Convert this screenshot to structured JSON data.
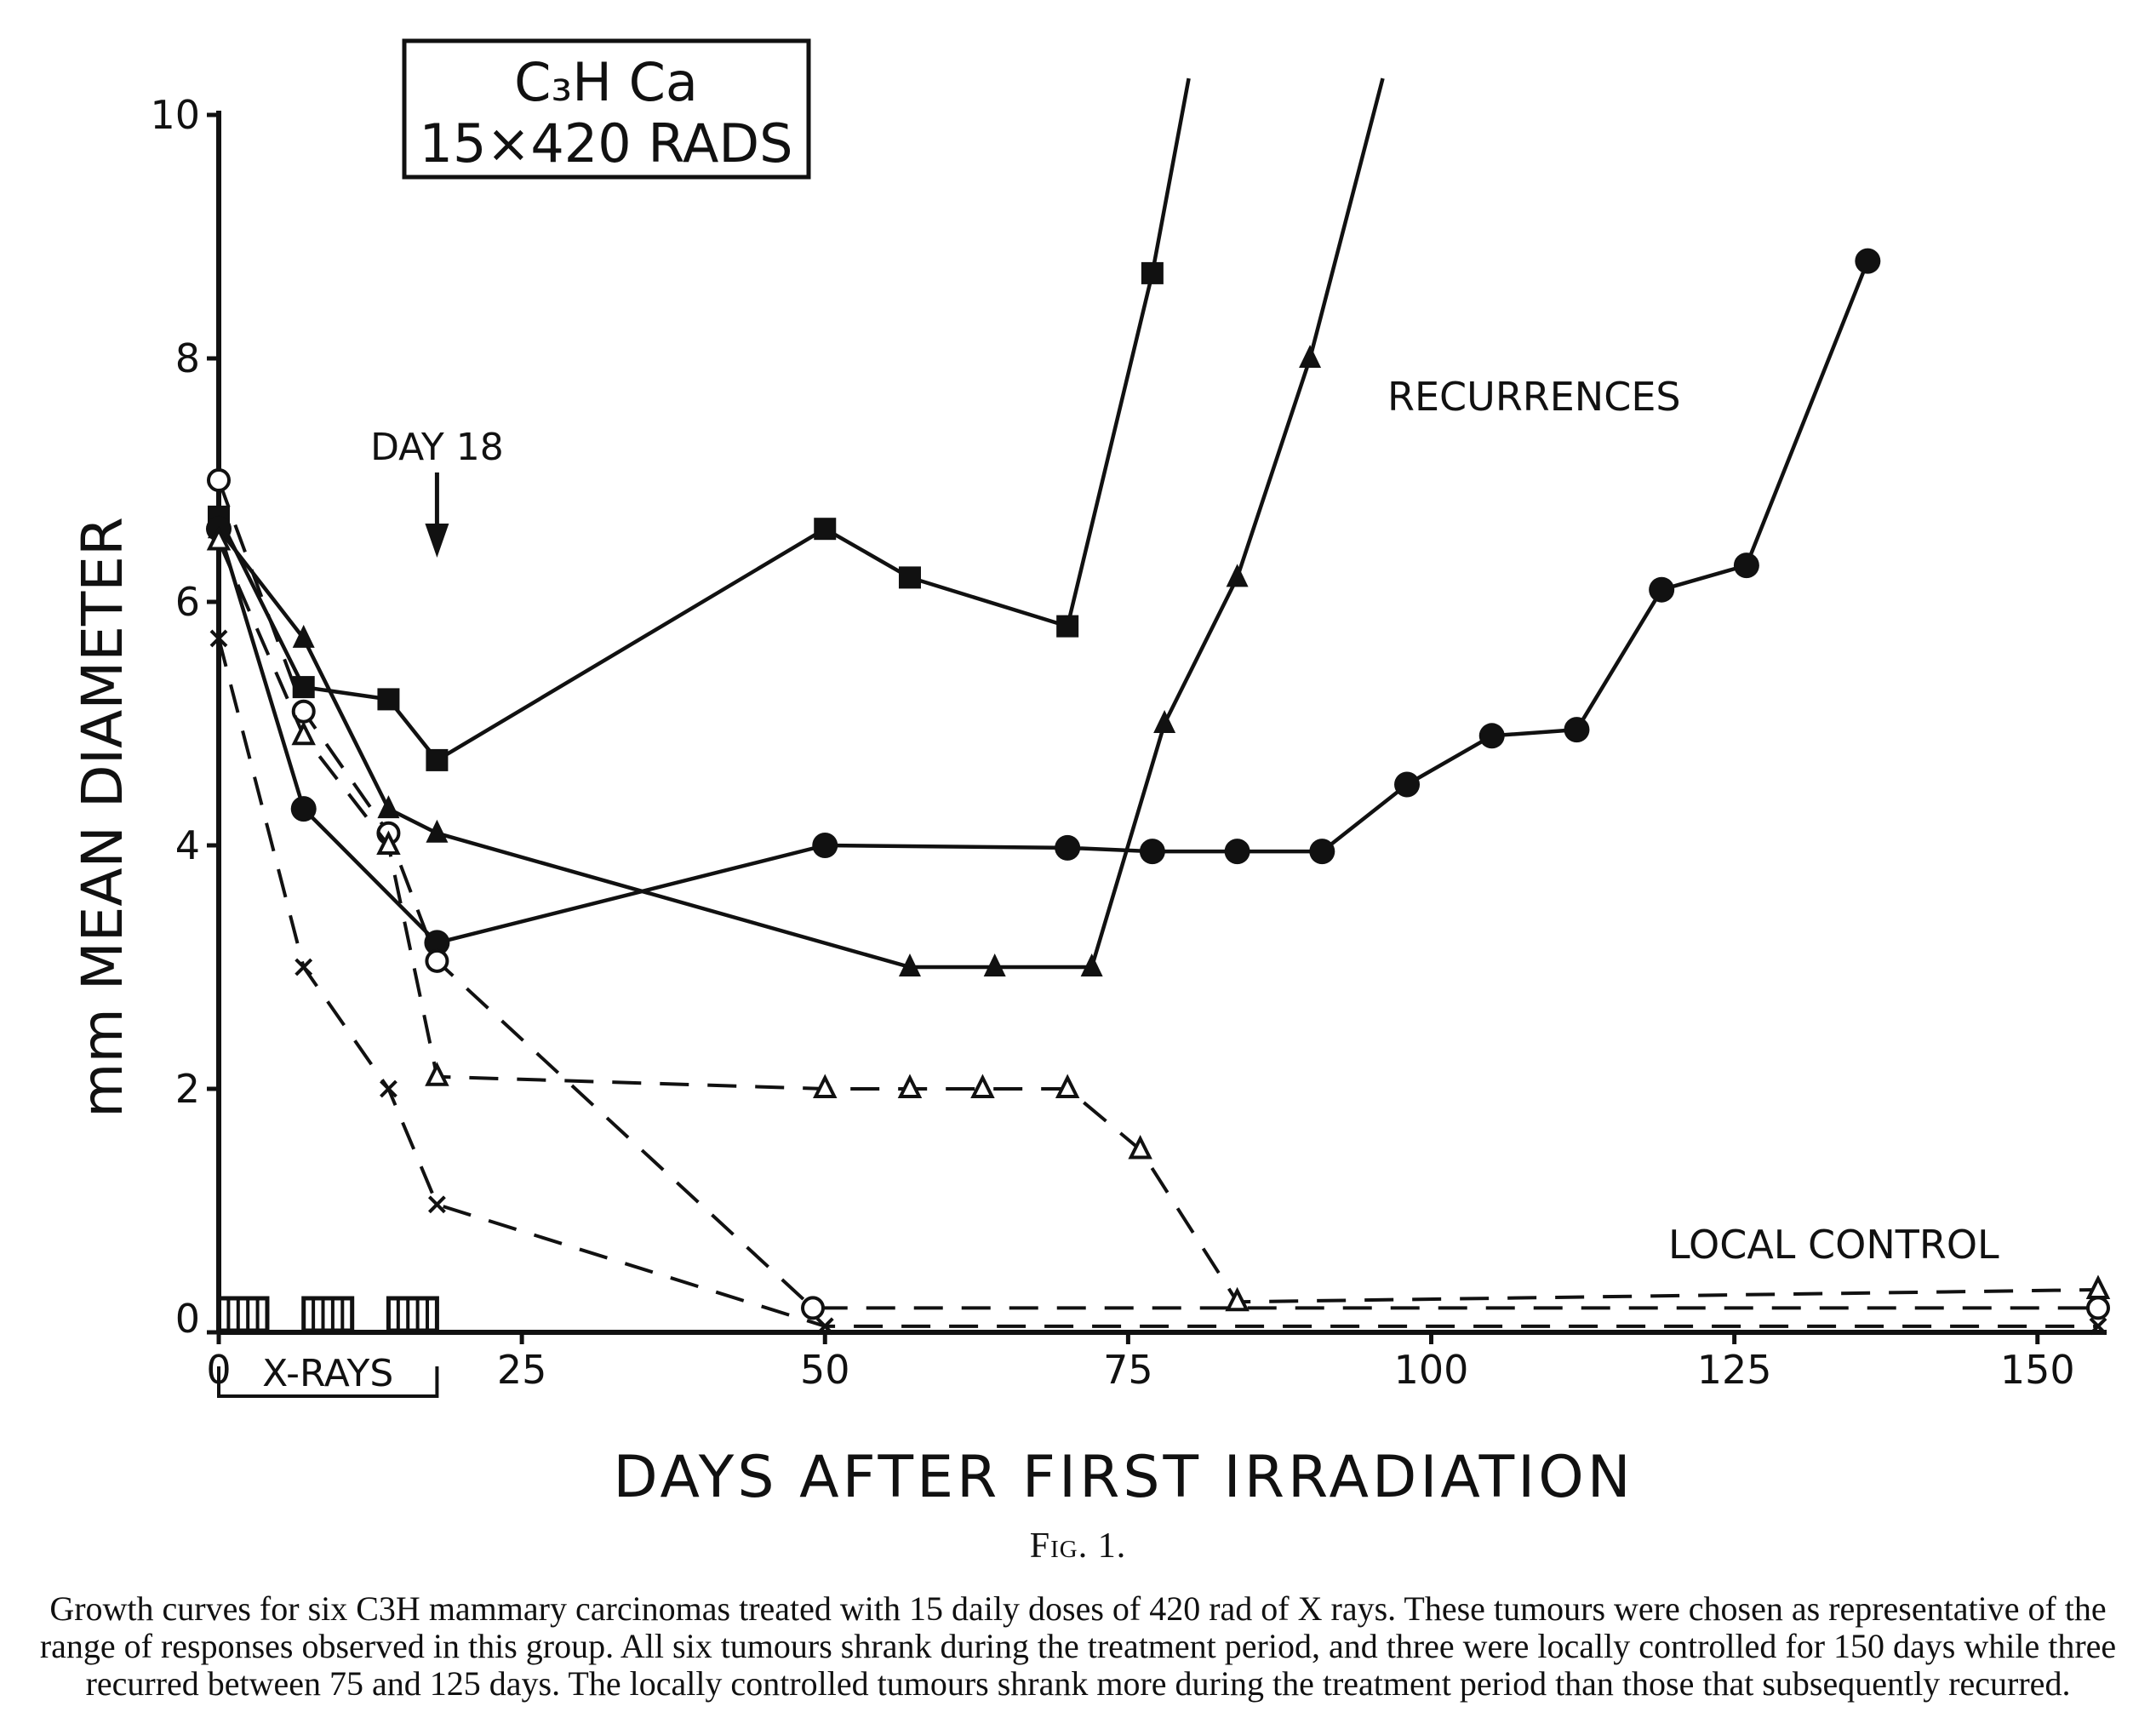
{
  "chart_data": {
    "type": "line",
    "box_title": [
      "C₃H Ca",
      "15×420 RADS"
    ],
    "xlabel": "DAYS AFTER FIRST IRRADIATION",
    "ylabel": "mm MEAN DIAMETER",
    "xlim": [
      0,
      155
    ],
    "ylim": [
      0,
      10
    ],
    "x_ticks": [
      0,
      25,
      50,
      75,
      100,
      125,
      150
    ],
    "y_ticks": [
      0,
      2,
      4,
      6,
      8,
      10
    ],
    "grid": false,
    "annotations": {
      "day18": "DAY 18",
      "recurrences": "RECURRENCES",
      "local_control": "LOCAL CONTROL",
      "xrays": "X-RAYS"
    },
    "xray_weeks": [
      [
        0,
        4
      ],
      [
        7,
        11
      ],
      [
        14,
        18
      ]
    ],
    "series": [
      {
        "marker": "square",
        "style": "solid",
        "x": [
          0,
          7,
          14,
          18,
          50,
          57,
          70,
          77,
          80
        ],
        "y": [
          6.7,
          5.3,
          5.2,
          4.7,
          6.6,
          6.2,
          5.8,
          8.7,
          10.3
        ]
      },
      {
        "marker": "triangle-filled",
        "style": "solid",
        "x": [
          0,
          7,
          14,
          18,
          57,
          64,
          72,
          78,
          84,
          90,
          96
        ],
        "y": [
          6.6,
          5.7,
          4.3,
          4.1,
          3.0,
          3.0,
          3.0,
          5.0,
          6.2,
          8.0,
          10.3
        ]
      },
      {
        "marker": "circle-filled",
        "style": "solid",
        "x": [
          0,
          7,
          18,
          50,
          70,
          77,
          84,
          91,
          98,
          105,
          112,
          119,
          126,
          136
        ],
        "y": [
          6.6,
          4.3,
          3.2,
          4.0,
          3.98,
          3.95,
          3.95,
          3.95,
          4.5,
          4.9,
          4.95,
          6.1,
          6.3,
          8.8
        ]
      },
      {
        "marker": "circle-open",
        "style": "dashed",
        "x": [
          0,
          7,
          14,
          18,
          49,
          155
        ],
        "y": [
          7.0,
          5.1,
          4.1,
          3.05,
          0.2,
          0.2
        ]
      },
      {
        "marker": "triangle-open",
        "style": "dashed",
        "x": [
          0,
          7,
          14,
          18,
          50,
          57,
          63,
          70,
          76,
          84,
          155
        ],
        "y": [
          6.5,
          4.9,
          4.0,
          2.1,
          2.0,
          2.0,
          2.0,
          2.0,
          1.5,
          0.25,
          0.35
        ]
      },
      {
        "marker": "cross",
        "style": "dashed",
        "x": [
          0,
          7,
          14,
          18,
          50,
          155
        ],
        "y": [
          5.7,
          3.0,
          2.0,
          1.05,
          0.05,
          0.05
        ]
      }
    ]
  },
  "caption": {
    "figure_label": "Fig. 1.",
    "text": "Growth curves for six C3H mammary carcinomas treated with 15 daily doses of 420 rad of X rays. These tumours were chosen as representative of the range of responses observed in this group. All six tumours shrank during the treatment period, and three were locally controlled for 150 days while three recurred between 75 and 125 days. The locally controlled tumours shrank more during the treatment period than those that subsequently recurred."
  }
}
